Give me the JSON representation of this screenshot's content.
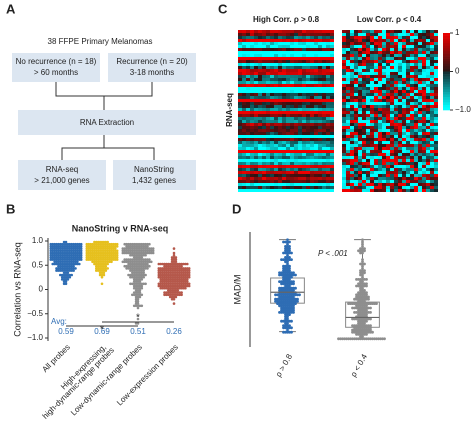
{
  "panel_a": {
    "label": "A",
    "title": "38 FFPE Primary Melanomas",
    "boxes": [
      [
        "No recurrence (n = 18)",
        "> 60 months"
      ],
      [
        "Recurrence (n = 20)",
        "3-18 months"
      ],
      [
        "RNA Extraction"
      ],
      [
        "RNA-seq",
        "> 21,000 genes"
      ],
      [
        "NanoString",
        "1,432 genes"
      ]
    ]
  },
  "panel_c": {
    "label": "C",
    "titles": [
      "High Corr. ρ > 0.8",
      "Low Corr. ρ < 0.4"
    ],
    "ylabel": "RNA-seq",
    "colorbar_ticks": [
      1,
      0,
      {
        "value": -1,
        "label": "−1.0"
      }
    ],
    "colorbar_lim": [
      -1,
      1
    ]
  },
  "chart_data": [
    {
      "type": "swarm",
      "panel": "B",
      "title": "NanoString v RNA-seq",
      "ylabel": "Correlation vs RNA-seq",
      "categories": [
        [
          "All probes"
        ],
        [
          "High-expressing,",
          "high-dynamic-range probes"
        ],
        [
          "Low-dynamic-range probes"
        ],
        [
          "Low-expression probes"
        ]
      ],
      "colors": [
        "#2e6db4",
        "#e6c01e",
        "#8e8e8e",
        "#b5584b"
      ],
      "avg_label": "Avg:",
      "avg": [
        0.59,
        0.69,
        0.51,
        0.26
      ],
      "annotations": [
        "*",
        "*"
      ],
      "ylim": [
        -1,
        1
      ],
      "yticks": [
        {
          "value": 1,
          "label": "1.0"
        },
        {
          "value": 0.5,
          "label": "0.5"
        },
        0,
        {
          "value": -0.5,
          "label": "−0.5"
        },
        {
          "value": -1,
          "label": "−1.0"
        }
      ]
    },
    {
      "type": "box",
      "panel": "D",
      "ylabel": "MAD/M",
      "categories": [
        "ρ > 0.8",
        "ρ < 0.4"
      ],
      "annotation": "P < .001",
      "colors": [
        "#2e6db4",
        "#8e8e8e"
      ],
      "boxes": [
        {
          "whislo": 0.14,
          "q1": 0.4,
          "med": 0.5,
          "q3": 0.63,
          "whishi": 0.98
        },
        {
          "whislo": 0.08,
          "q1": 0.18,
          "med": 0.27,
          "q3": 0.41,
          "whishi": 0.98
        }
      ],
      "ylim": [
        0,
        1.05
      ]
    }
  ]
}
